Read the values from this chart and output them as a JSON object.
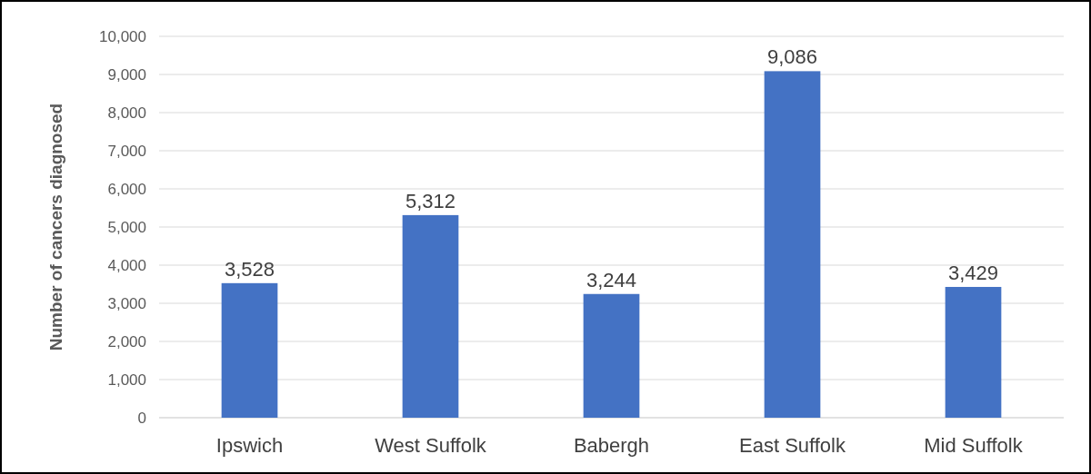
{
  "chart_data": {
    "type": "bar",
    "ylabel": "Number of cancers diagnosed",
    "categories": [
      "Ipswich",
      "West Suffolk",
      "Babergh",
      "East Suffolk",
      "Mid Suffolk"
    ],
    "values": [
      3528,
      5312,
      3244,
      9086,
      3429
    ],
    "color": "#4472c4",
    "ylim": [
      0,
      10000
    ],
    "yticks": [
      {
        "value": 0,
        "label": "0"
      },
      {
        "value": 1000,
        "label": "1,000"
      },
      {
        "value": 2000,
        "label": "2,000"
      },
      {
        "value": 3000,
        "label": "3,000"
      },
      {
        "value": 4000,
        "label": "4,000"
      },
      {
        "value": 5000,
        "label": "5,000"
      },
      {
        "value": 6000,
        "label": "6,000"
      },
      {
        "value": 7000,
        "label": "7,000"
      },
      {
        "value": 8000,
        "label": "8,000"
      },
      {
        "value": 9000,
        "label": "9,000"
      },
      {
        "value": 10000,
        "label": "10,000"
      }
    ],
    "value_labels": [
      "3,528",
      "5,312",
      "3,244",
      "9,086",
      "3,429"
    ],
    "grid": "y"
  }
}
